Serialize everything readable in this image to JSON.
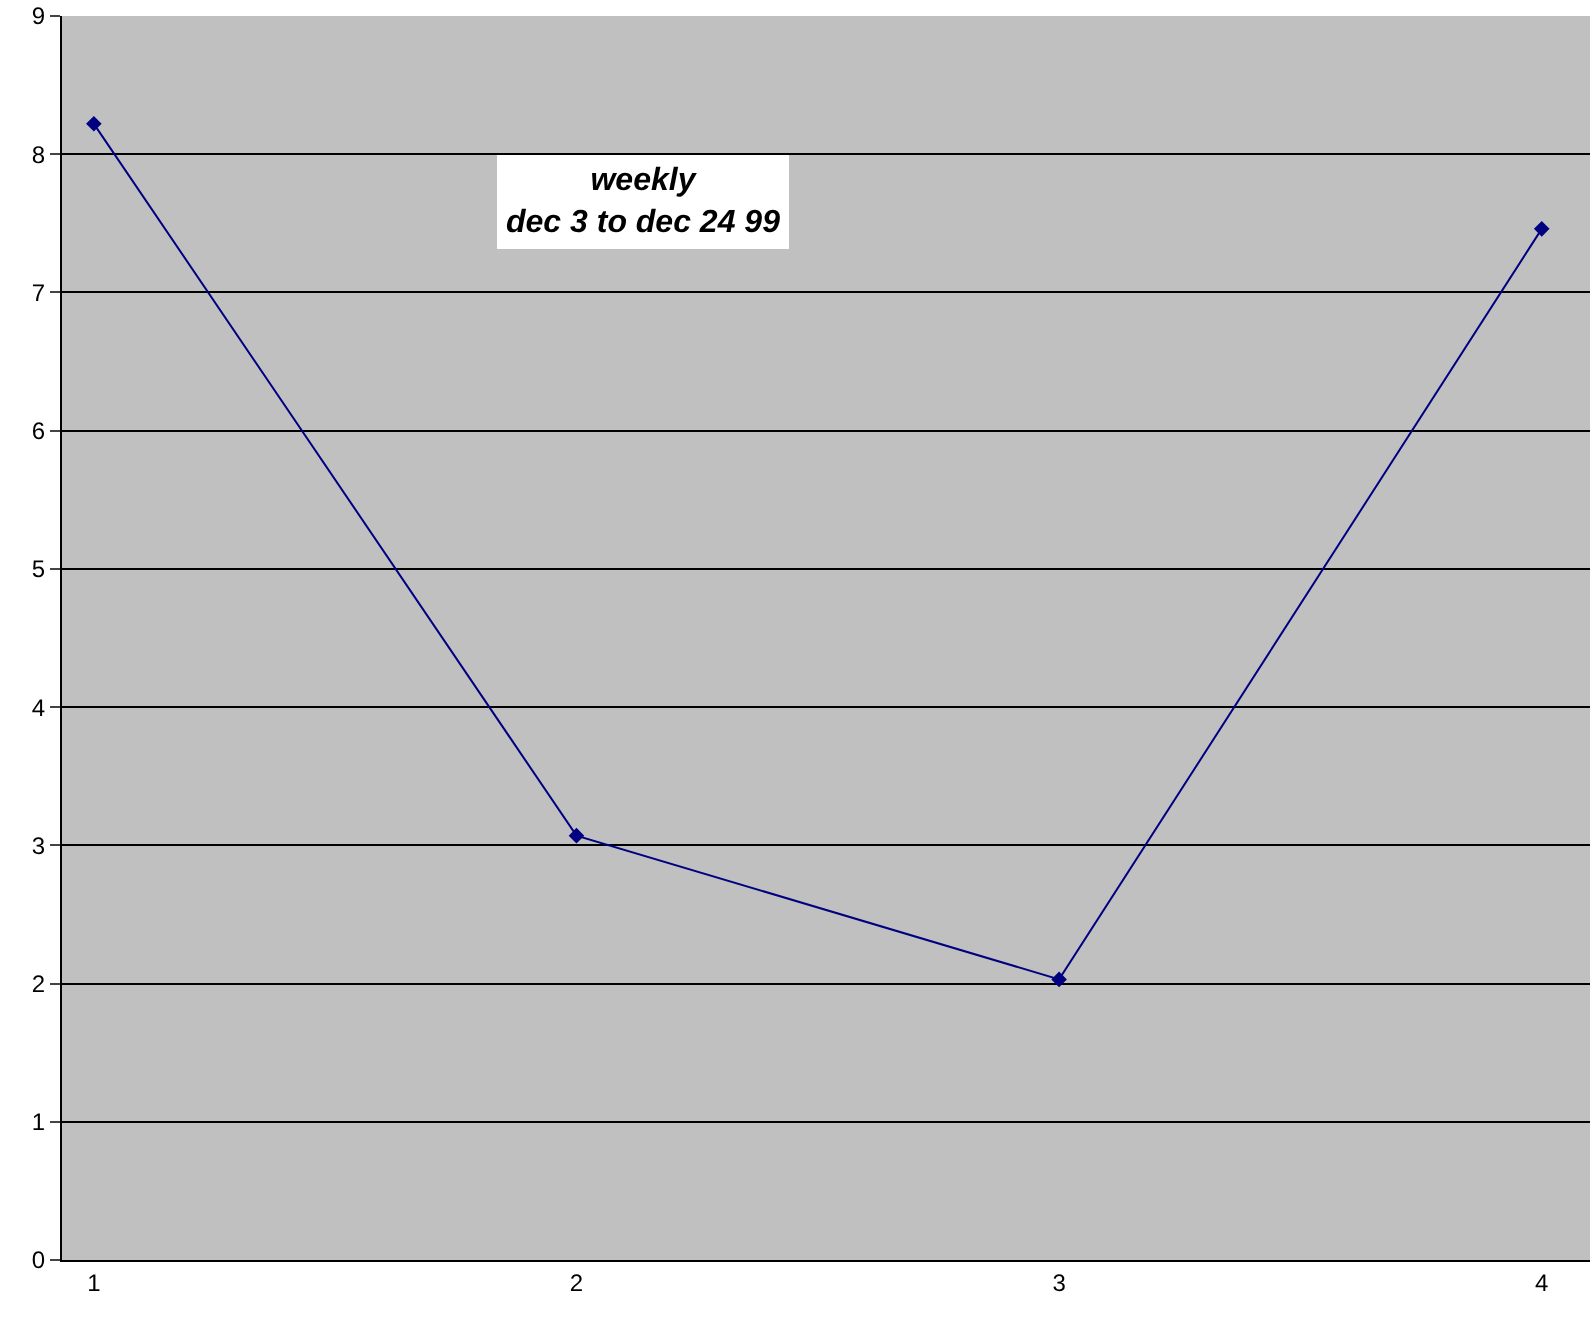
{
  "chart_data": {
    "type": "line",
    "title": "weekly\ndec 3 to dec 24 99",
    "categories": [
      "1",
      "2",
      "3",
      "4"
    ],
    "series": [
      {
        "color": "#000080",
        "values": [
          8.22,
          3.07,
          2.03,
          7.46
        ]
      }
    ],
    "ylim": [
      0,
      9
    ],
    "yticks": [
      0,
      1,
      2,
      3,
      4,
      5,
      6,
      7,
      8,
      9
    ],
    "grid": "y",
    "marker": "diamond",
    "line_style": "solid"
  }
}
